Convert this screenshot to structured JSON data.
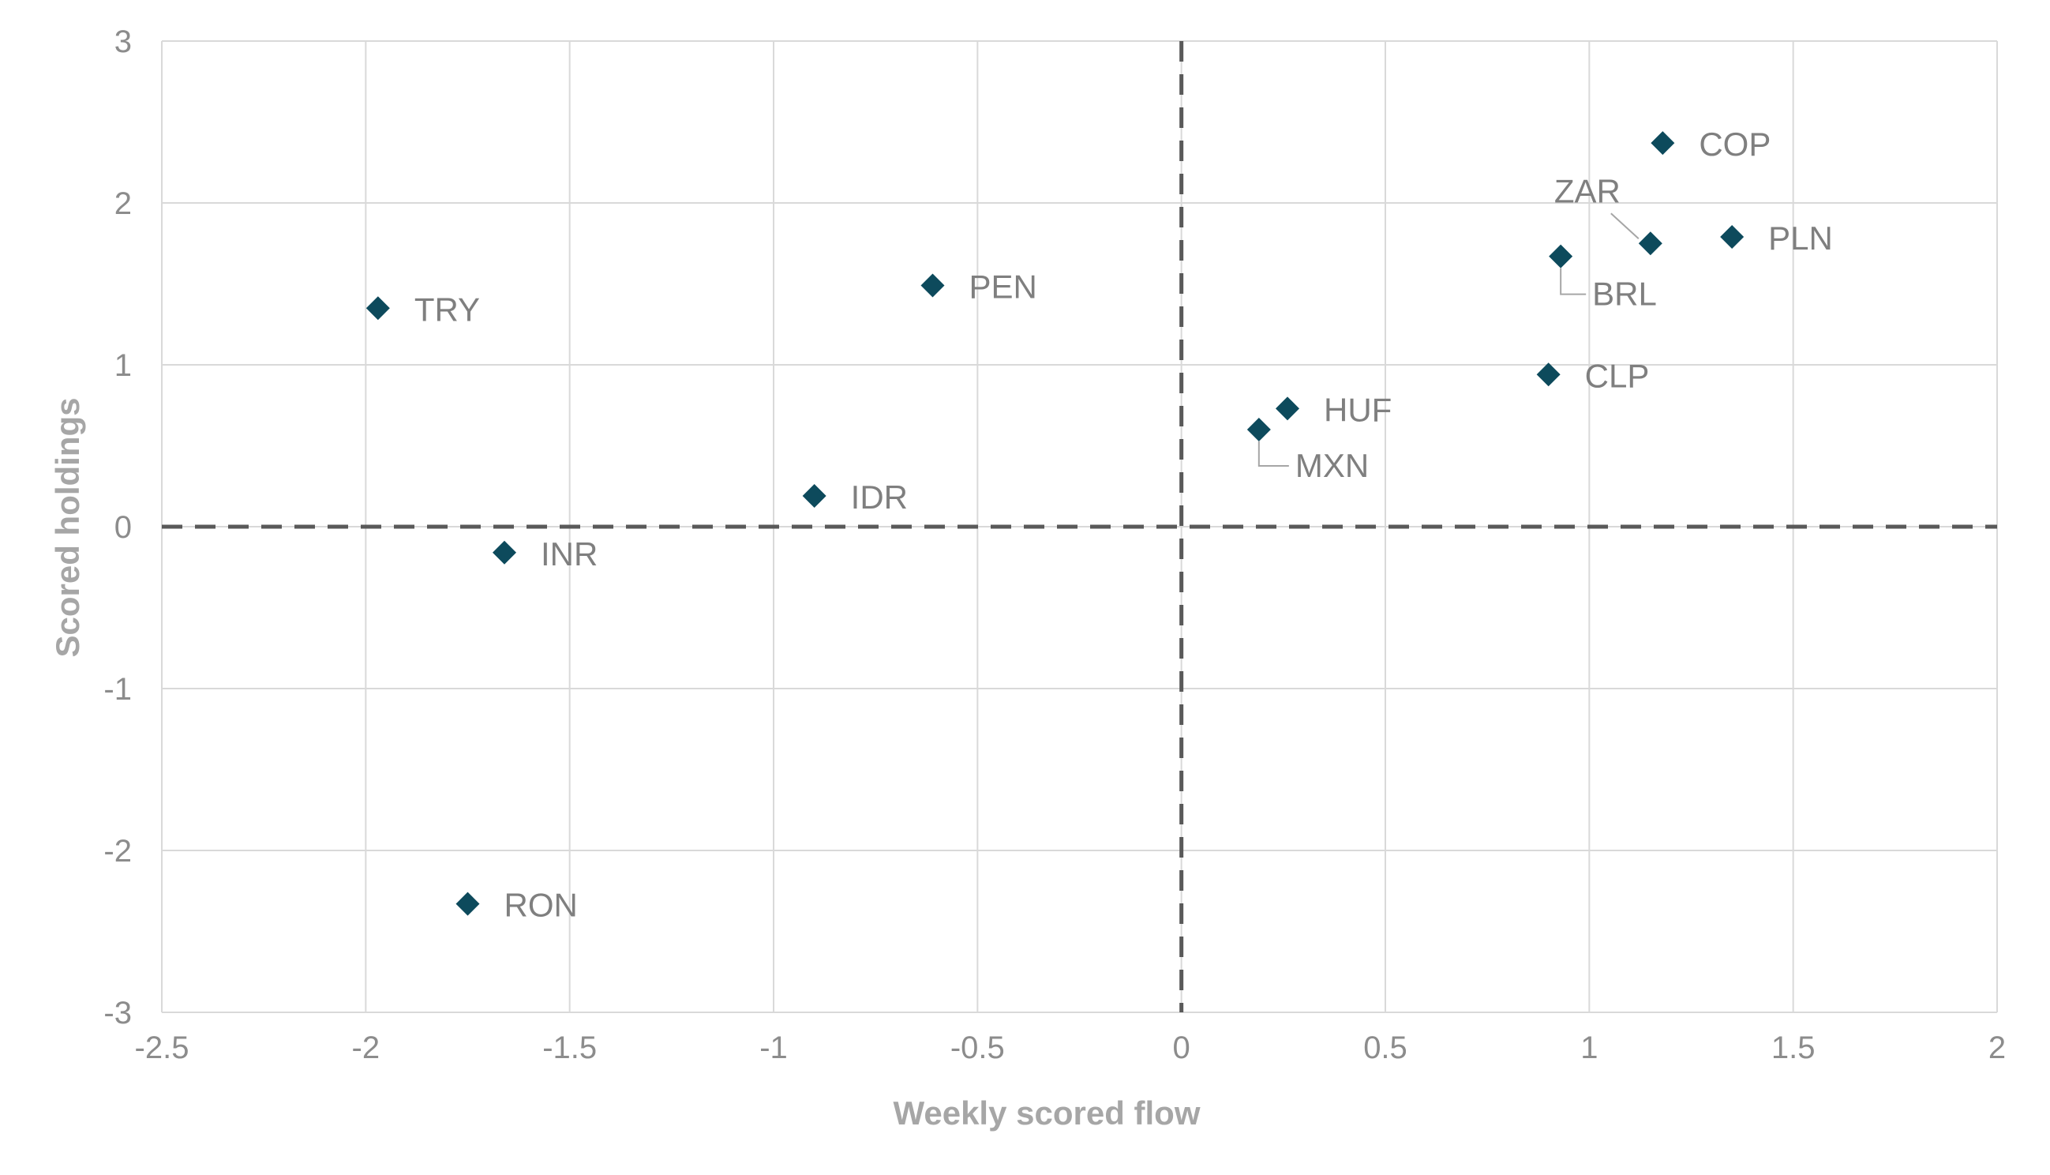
{
  "chart_data": {
    "type": "scatter",
    "xlabel": "Weekly scored flow",
    "ylabel": "Scored holdings",
    "xlim": [
      -2.5,
      2
    ],
    "ylim": [
      -3,
      3
    ],
    "xticks": [
      -2.5,
      -2,
      -1.5,
      -1,
      -0.5,
      0,
      0.5,
      1,
      1.5,
      2
    ],
    "yticks": [
      -3,
      -2,
      -1,
      0,
      1,
      2,
      3
    ],
    "xtick_labels": [
      "-2.5",
      "-2",
      "-1.5",
      "-1",
      "-0.5",
      "0",
      "0.5",
      "1",
      "1.5",
      "2"
    ],
    "ytick_labels": [
      "-3",
      "-2",
      "-1",
      "0",
      "1",
      "2",
      "3"
    ],
    "grid": true,
    "marker": "diamond",
    "marker_color": "#0d4a5c",
    "reference_lines": [
      "x=0 dashed",
      "y=0 dashed"
    ],
    "points": [
      {
        "label": "COP",
        "x": 1.18,
        "y": 2.37
      },
      {
        "label": "ZAR",
        "x": 1.15,
        "y": 1.75
      },
      {
        "label": "PLN",
        "x": 1.35,
        "y": 1.79
      },
      {
        "label": "BRL",
        "x": 0.93,
        "y": 1.67
      },
      {
        "label": "CLP",
        "x": 0.9,
        "y": 0.94
      },
      {
        "label": "HUF",
        "x": 0.26,
        "y": 0.73
      },
      {
        "label": "MXN",
        "x": 0.19,
        "y": 0.6
      },
      {
        "label": "PEN",
        "x": -0.61,
        "y": 1.49
      },
      {
        "label": "TRY",
        "x": -1.97,
        "y": 1.35
      },
      {
        "label": "IDR",
        "x": -0.9,
        "y": 0.19
      },
      {
        "label": "INR",
        "x": -1.66,
        "y": -0.16
      },
      {
        "label": "RON",
        "x": -1.75,
        "y": -2.33
      }
    ]
  }
}
